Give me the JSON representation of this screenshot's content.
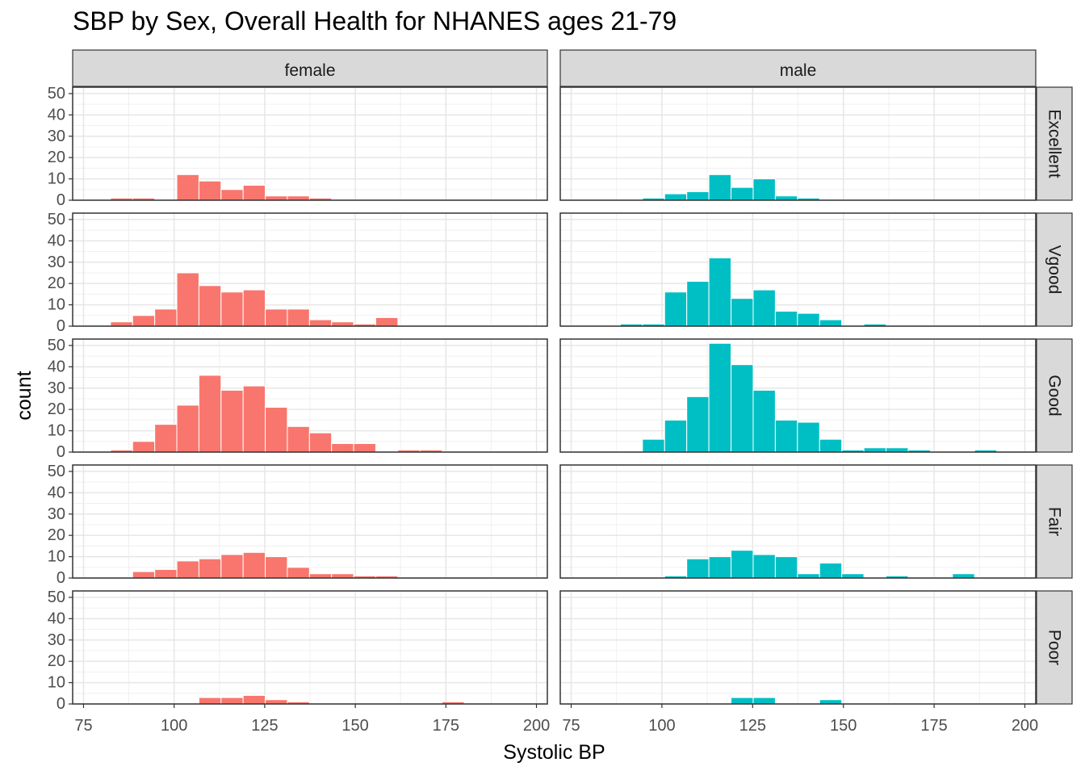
{
  "chart_data": {
    "type": "bar",
    "title": "SBP by Sex, Overall Health for NHANES ages 21-79",
    "xlabel": "Systolic BP",
    "ylabel": "count",
    "columns": [
      "female",
      "male"
    ],
    "rows": [
      "Excellent",
      "Vgood",
      "Good",
      "Fair",
      "Poor"
    ],
    "xlim": [
      72,
      203
    ],
    "ylim": [
      0,
      53
    ],
    "x_ticks": [
      75,
      100,
      125,
      150,
      175,
      200
    ],
    "y_ticks": [
      0,
      10,
      20,
      30,
      40,
      50
    ],
    "bin_width": 6.1,
    "grid": true,
    "colors": {
      "female": "#F8766D",
      "male": "#00BFC4"
    },
    "panels": [
      {
        "row": "Excellent",
        "column": "female",
        "bins": [
          [
            85.5,
            1
          ],
          [
            91.6,
            1
          ],
          [
            103.8,
            12
          ],
          [
            109.9,
            9
          ],
          [
            116,
            5
          ],
          [
            122.1,
            7
          ],
          [
            128.2,
            2
          ],
          [
            134.3,
            2
          ],
          [
            140.4,
            1
          ]
        ]
      },
      {
        "row": "Excellent",
        "column": "male",
        "bins": [
          [
            97.7,
            1
          ],
          [
            103.8,
            3
          ],
          [
            109.9,
            4
          ],
          [
            116,
            12
          ],
          [
            122.1,
            6
          ],
          [
            128.2,
            10
          ],
          [
            134.3,
            2
          ],
          [
            140.4,
            1
          ]
        ]
      },
      {
        "row": "Vgood",
        "column": "female",
        "bins": [
          [
            85.5,
            2
          ],
          [
            91.6,
            5
          ],
          [
            97.7,
            8
          ],
          [
            103.8,
            25
          ],
          [
            109.9,
            19
          ],
          [
            116,
            16
          ],
          [
            122.1,
            17
          ],
          [
            128.2,
            8
          ],
          [
            134.3,
            8
          ],
          [
            140.4,
            3
          ],
          [
            146.5,
            2
          ],
          [
            152.6,
            1
          ],
          [
            158.7,
            4
          ]
        ]
      },
      {
        "row": "Vgood",
        "column": "male",
        "bins": [
          [
            91.6,
            1
          ],
          [
            97.7,
            1
          ],
          [
            103.8,
            16
          ],
          [
            109.9,
            21
          ],
          [
            116,
            32
          ],
          [
            122.1,
            13
          ],
          [
            128.2,
            17
          ],
          [
            134.3,
            7
          ],
          [
            140.4,
            6
          ],
          [
            146.5,
            3
          ],
          [
            158.7,
            1
          ]
        ]
      },
      {
        "row": "Good",
        "column": "female",
        "bins": [
          [
            85.5,
            1
          ],
          [
            91.6,
            5
          ],
          [
            97.7,
            13
          ],
          [
            103.8,
            22
          ],
          [
            109.9,
            36
          ],
          [
            116,
            29
          ],
          [
            122.1,
            31
          ],
          [
            128.2,
            21
          ],
          [
            134.3,
            12
          ],
          [
            140.4,
            9
          ],
          [
            146.5,
            4
          ],
          [
            152.6,
            4
          ],
          [
            164.8,
            1
          ],
          [
            170.9,
            1
          ]
        ]
      },
      {
        "row": "Good",
        "column": "male",
        "bins": [
          [
            97.7,
            6
          ],
          [
            103.8,
            15
          ],
          [
            109.9,
            26
          ],
          [
            116,
            51
          ],
          [
            122.1,
            41
          ],
          [
            128.2,
            29
          ],
          [
            134.3,
            15
          ],
          [
            140.4,
            14
          ],
          [
            146.5,
            6
          ],
          [
            152.6,
            1
          ],
          [
            158.7,
            2
          ],
          [
            164.8,
            2
          ],
          [
            170.9,
            1
          ],
          [
            189.2,
            1
          ]
        ]
      },
      {
        "row": "Fair",
        "column": "female",
        "bins": [
          [
            91.6,
            3
          ],
          [
            97.7,
            4
          ],
          [
            103.8,
            8
          ],
          [
            109.9,
            9
          ],
          [
            116,
            11
          ],
          [
            122.1,
            12
          ],
          [
            128.2,
            10
          ],
          [
            134.3,
            5
          ],
          [
            140.4,
            2
          ],
          [
            146.5,
            2
          ],
          [
            152.6,
            1
          ],
          [
            158.7,
            1
          ]
        ]
      },
      {
        "row": "Fair",
        "column": "male",
        "bins": [
          [
            103.8,
            1
          ],
          [
            109.9,
            9
          ],
          [
            116,
            10
          ],
          [
            122.1,
            13
          ],
          [
            128.2,
            11
          ],
          [
            134.3,
            10
          ],
          [
            140.4,
            2
          ],
          [
            146.5,
            7
          ],
          [
            152.6,
            2
          ],
          [
            164.8,
            1
          ],
          [
            183.1,
            2
          ]
        ]
      },
      {
        "row": "Poor",
        "column": "female",
        "bins": [
          [
            109.9,
            3
          ],
          [
            116,
            3
          ],
          [
            122.1,
            4
          ],
          [
            128.2,
            2
          ],
          [
            134.3,
            1
          ],
          [
            177,
            1
          ]
        ]
      },
      {
        "row": "Poor",
        "column": "male",
        "bins": [
          [
            122.1,
            3
          ],
          [
            128.2,
            3
          ],
          [
            146.5,
            2
          ]
        ]
      }
    ]
  }
}
